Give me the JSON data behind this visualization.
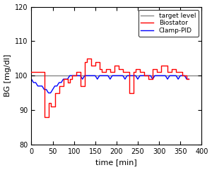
{
  "xlabel": "time [min]",
  "ylabel": "BG [mg/dl]",
  "xlim": [
    0,
    400
  ],
  "ylim": [
    80,
    120
  ],
  "xticks": [
    0,
    50,
    100,
    150,
    200,
    250,
    300,
    350,
    400
  ],
  "yticks": [
    80,
    90,
    100,
    110,
    120
  ],
  "target_color": "#888888",
  "target_label": "target level",
  "biostator_color": "#ff0000",
  "biostator_label": "Biostator",
  "clamp_color": "#0000ff",
  "clamp_label": "Clamp-PID",
  "legend_loc": "upper right",
  "linewidth": 1.0,
  "background_color": "#ffffff",
  "figsize": [
    3.0,
    2.41
  ],
  "dpi": 100,
  "biostator_t": [
    0,
    5,
    10,
    15,
    20,
    25,
    30,
    35,
    40,
    45,
    50,
    55,
    60,
    65,
    70,
    75,
    80,
    85,
    90,
    95,
    100,
    105,
    110,
    115,
    120,
    125,
    130,
    135,
    140,
    145,
    150,
    155,
    160,
    165,
    170,
    175,
    180,
    185,
    190,
    195,
    200,
    205,
    210,
    215,
    220,
    225,
    230,
    235,
    240,
    245,
    250,
    255,
    260,
    265,
    270,
    275,
    280,
    285,
    290,
    295,
    300,
    305,
    310,
    315,
    320,
    325,
    330,
    335,
    340,
    345,
    350,
    355,
    360,
    365,
    370
  ],
  "biostator_y": [
    101,
    101,
    101,
    101,
    101,
    101,
    88,
    88,
    92,
    91,
    91,
    95,
    95,
    97,
    97,
    99,
    99,
    98,
    99,
    100,
    100,
    101,
    101,
    97,
    97,
    104,
    105,
    105,
    103,
    103,
    104,
    104,
    102,
    101,
    101,
    102,
    102,
    101,
    101,
    103,
    103,
    102,
    102,
    101,
    101,
    101,
    95,
    95,
    101,
    102,
    102,
    101,
    101,
    100,
    100,
    99,
    99,
    102,
    102,
    101,
    101,
    103,
    103,
    103,
    101,
    101,
    102,
    102,
    101,
    101,
    101,
    100,
    100,
    99,
    99
  ],
  "clamp_t": [
    0,
    5,
    10,
    15,
    20,
    25,
    30,
    35,
    40,
    45,
    50,
    55,
    60,
    65,
    70,
    75,
    80,
    85,
    90,
    95,
    100,
    105,
    110,
    115,
    120,
    125,
    130,
    135,
    140,
    145,
    150,
    155,
    160,
    165,
    170,
    175,
    180,
    185,
    190,
    195,
    200,
    205,
    210,
    215,
    220,
    225,
    230,
    235,
    240,
    245,
    250,
    255,
    260,
    265,
    270,
    275,
    280,
    285,
    290,
    295,
    300,
    305,
    310,
    315,
    320,
    325,
    330,
    335,
    340,
    345,
    350,
    355,
    360,
    365,
    370
  ],
  "clamp_y": [
    99,
    98,
    98,
    97,
    97,
    97,
    96,
    96,
    95,
    95,
    96,
    97,
    97,
    98,
    98,
    99,
    99,
    99,
    100,
    100,
    100,
    100,
    100,
    100,
    99,
    100,
    100,
    100,
    100,
    100,
    100,
    99,
    100,
    100,
    100,
    100,
    100,
    99,
    100,
    100,
    100,
    100,
    100,
    100,
    99,
    100,
    100,
    100,
    100,
    100,
    99,
    100,
    100,
    100,
    100,
    100,
    100,
    99,
    100,
    100,
    100,
    100,
    100,
    100,
    99,
    100,
    100,
    100,
    100,
    99,
    100,
    100,
    100,
    99,
    99
  ]
}
